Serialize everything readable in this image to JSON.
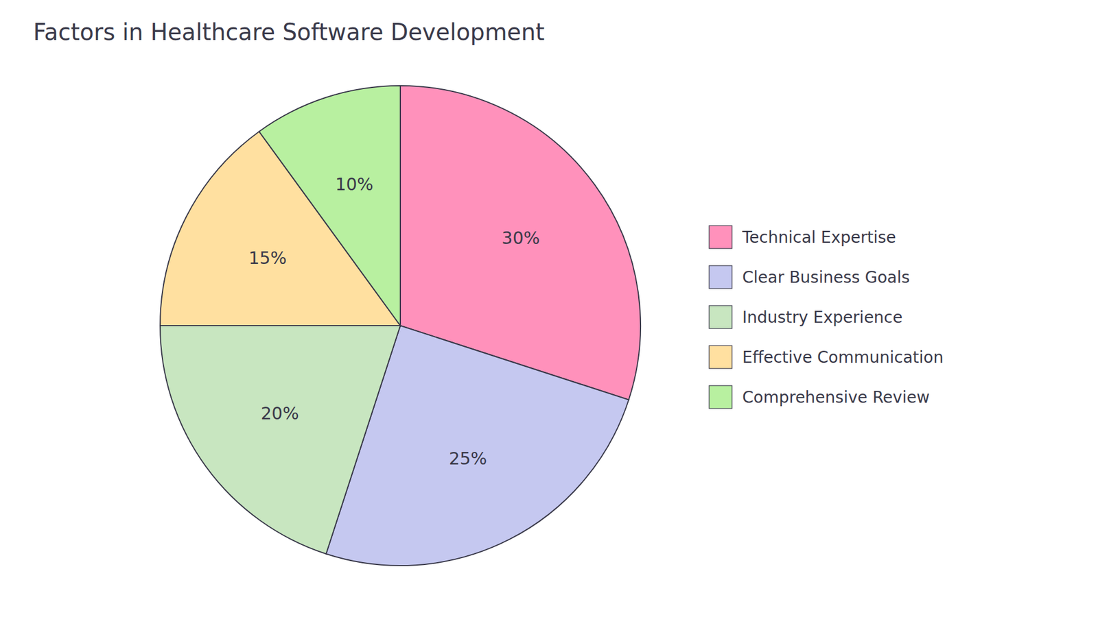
{
  "chart_data": {
    "type": "pie",
    "title": "Factors in Healthcare Software Development",
    "categories": [
      "Technical Expertise",
      "Clear Business Goals",
      "Industry Experience",
      "Effective Communication",
      "Comprehensive Review"
    ],
    "values": [
      30,
      25,
      20,
      15,
      10
    ],
    "value_labels": [
      "30%",
      "25%",
      "20%",
      "15%",
      "10%"
    ],
    "colors": [
      "#FF91BB",
      "#C5C8F0",
      "#C8E6C0",
      "#FFE0A0",
      "#B8F0A0"
    ],
    "data_labels": true,
    "legend": "right"
  }
}
